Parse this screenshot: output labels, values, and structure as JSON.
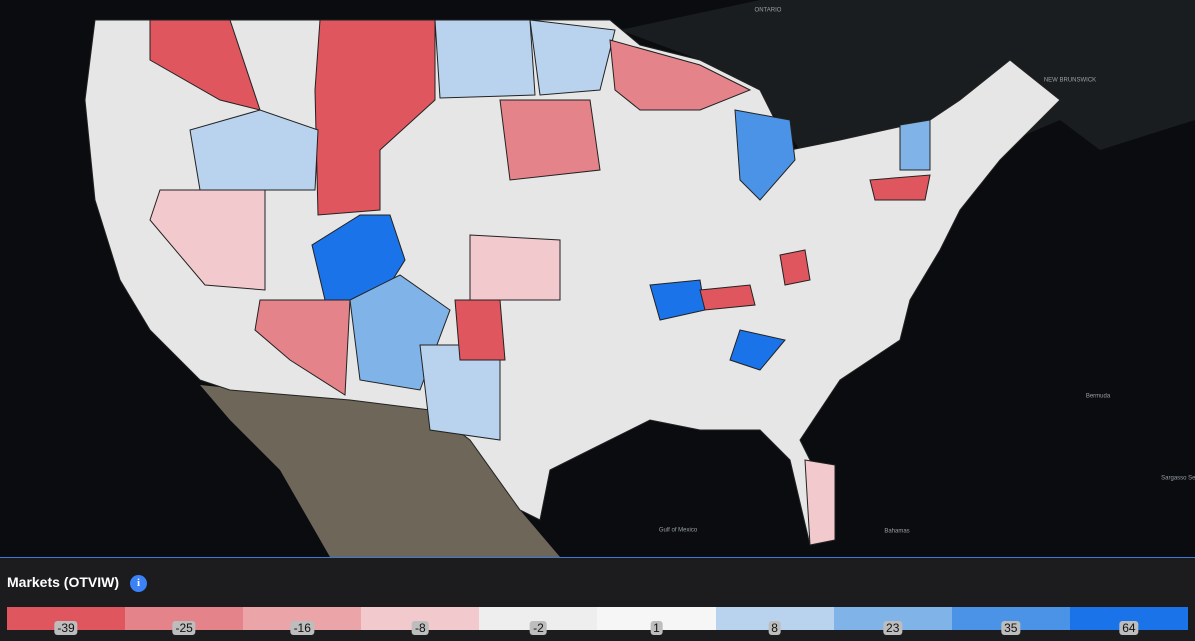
{
  "map_labels": [
    "ONTARIO",
    "NEW BRUNSWICK",
    "Bermuda",
    "Gulf of Mexico",
    "Bahamas",
    "Sargasso Sea"
  ],
  "legend": {
    "title": "Markets (OTVIW)",
    "items": [
      {
        "label": -39,
        "color": "#e0565f"
      },
      {
        "label": -25,
        "color": "#e5838a"
      },
      {
        "label": -16,
        "color": "#eba5a9"
      },
      {
        "label": -8,
        "color": "#f2cacd"
      },
      {
        "label": -2,
        "color": "#eeeeee"
      },
      {
        "label": 1,
        "color": "#f6f6f6"
      },
      {
        "label": 8,
        "color": "#b9d3ee"
      },
      {
        "label": 23,
        "color": "#80b3e8"
      },
      {
        "label": 35,
        "color": "#4a93e6"
      },
      {
        "label": 64,
        "color": "#1a73e8"
      }
    ]
  }
}
